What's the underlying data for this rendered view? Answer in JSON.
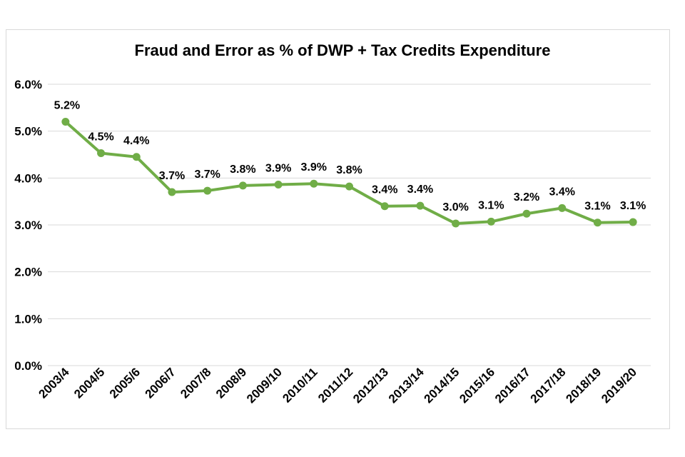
{
  "chart_data": {
    "type": "line",
    "title": "Fraud and Error as % of DWP + Tax Credits Expenditure",
    "categories": [
      "2003/4",
      "2004/5",
      "2005/6",
      "2006/7",
      "2007/8",
      "2008/9",
      "2009/10",
      "2010/11",
      "2011/12",
      "2012/13",
      "2013/14",
      "2014/15",
      "2015/16",
      "2016/17",
      "2017/18",
      "2018/19",
      "2019/20"
    ],
    "series": [
      {
        "values": [
          5.2,
          4.53,
          4.45,
          3.7,
          3.73,
          3.84,
          3.86,
          3.88,
          3.82,
          3.4,
          3.41,
          3.03,
          3.07,
          3.24,
          3.36,
          3.05,
          3.06
        ],
        "data_labels": [
          "5.2%",
          "4.5%",
          "4.4%",
          "3.7%",
          "3.7%",
          "3.8%",
          "3.9%",
          "3.9%",
          "3.8%",
          "3.4%",
          "3.4%",
          "3.0%",
          "3.1%",
          "3.2%",
          "3.4%",
          "3.1%",
          "3.1%"
        ]
      }
    ],
    "y_ticks": [
      "0.0%",
      "1.0%",
      "2.0%",
      "3.0%",
      "4.0%",
      "5.0%",
      "6.0%"
    ],
    "ylim": [
      0,
      6
    ],
    "grid": true,
    "legend": "none",
    "line_color": "#70ad47",
    "grid_color": "#d9d9d9"
  }
}
